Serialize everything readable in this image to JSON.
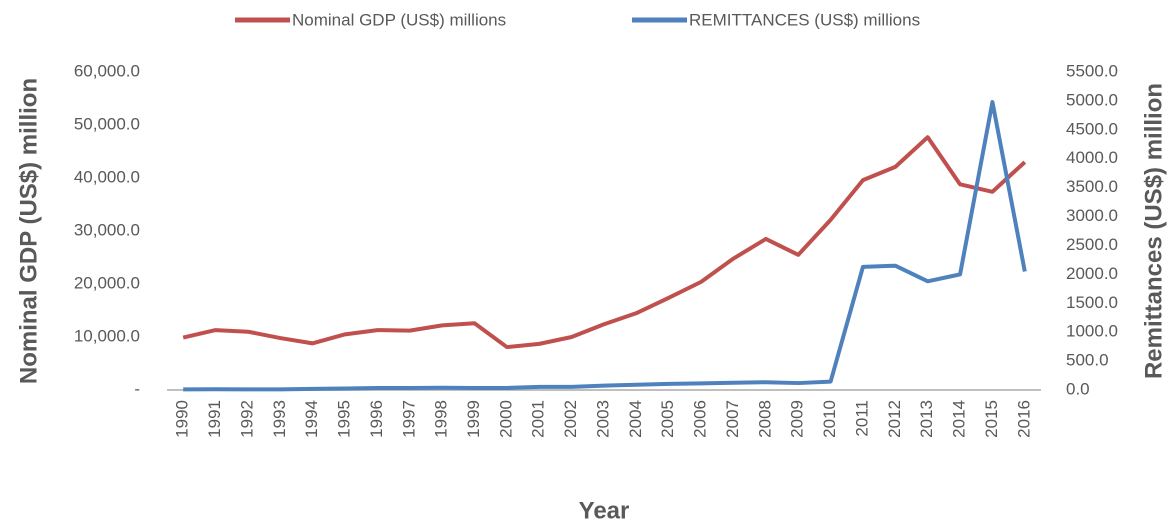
{
  "chart_data": {
    "type": "line",
    "x_label": "Year",
    "y_label": "Nominal GDP (US$) million",
    "y2_label": "Remittances  (US$)  million",
    "categories": [
      "1990",
      "1991",
      "1992",
      "1993",
      "1994",
      "1995",
      "1996",
      "1997",
      "1998",
      "1999",
      "2000",
      "2001",
      "2002",
      "2003",
      "2004",
      "2005",
      "2006",
      "2007",
      "2008",
      "2009",
      "2010",
      "2011",
      "2012",
      "2013",
      "2014",
      "2015",
      "2016"
    ],
    "series": [
      {
        "name": "Nominal GDP (US$) millions",
        "color": "#c0504d",
        "axis": "y",
        "values": [
          9900,
          11300,
          11000,
          9800,
          8800,
          10500,
          11300,
          11200,
          12200,
          12600,
          8100,
          8700,
          10000,
          12400,
          14500,
          17400,
          20400,
          24800,
          28500,
          25500,
          32100,
          39600,
          42100,
          47700,
          38800,
          37400,
          43000
        ]
      },
      {
        "name": "REMITTANCES (US$) millions",
        "color": "#4f81bd",
        "axis": "y2",
        "values": [
          10,
          12,
          11,
          11,
          20,
          25,
          35,
          35,
          38,
          35,
          35,
          55,
          55,
          75,
          90,
          105,
          115,
          125,
          135,
          120,
          145,
          2130,
          2150,
          1880,
          2000,
          4980,
          2050
        ]
      }
    ],
    "ylim": [
      0,
      60000
    ],
    "yticks": [
      {
        "value": 0,
        "label": "-"
      },
      {
        "value": 10000,
        "label": "10,000.0"
      },
      {
        "value": 20000,
        "label": "20,000.0"
      },
      {
        "value": 30000,
        "label": "30,000.0"
      },
      {
        "value": 40000,
        "label": "40,000.0"
      },
      {
        "value": 50000,
        "label": "50,000.0"
      },
      {
        "value": 60000,
        "label": "60,000.0"
      }
    ],
    "y2lim": [
      0,
      5500
    ],
    "y2ticks": [
      {
        "value": 0,
        "label": "0.0"
      },
      {
        "value": 500,
        "label": "500.0"
      },
      {
        "value": 1000,
        "label": "1000.0"
      },
      {
        "value": 1500,
        "label": "1500.0"
      },
      {
        "value": 2000,
        "label": "2000.0"
      },
      {
        "value": 2500,
        "label": "2500.0"
      },
      {
        "value": 3000,
        "label": "3000.0"
      },
      {
        "value": 3500,
        "label": "3500.0"
      },
      {
        "value": 4000,
        "label": "4000.0"
      },
      {
        "value": 4500,
        "label": "4500.0"
      },
      {
        "value": 5000,
        "label": "5000.0"
      },
      {
        "value": 5500,
        "label": "5500.0"
      }
    ],
    "legend": "top"
  }
}
